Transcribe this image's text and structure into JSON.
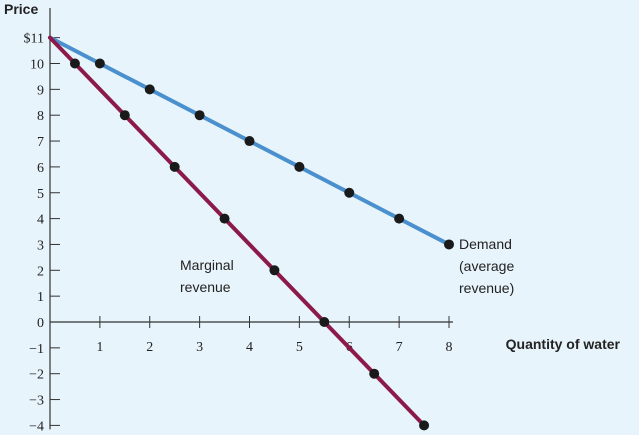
{
  "chart_data": {
    "type": "line",
    "ylabel": "Price",
    "xlabel": "Quantity of water",
    "xlim": [
      0,
      8
    ],
    "ylim": [
      -4,
      11
    ],
    "x_ticks": [
      1,
      2,
      3,
      4,
      5,
      6,
      7,
      8
    ],
    "y_ticks": [
      {
        "value": 11,
        "label": "$11"
      },
      {
        "value": 10,
        "label": "10"
      },
      {
        "value": 9,
        "label": "9"
      },
      {
        "value": 8,
        "label": "8"
      },
      {
        "value": 7,
        "label": "7"
      },
      {
        "value": 6,
        "label": "6"
      },
      {
        "value": 5,
        "label": "5"
      },
      {
        "value": 4,
        "label": "4"
      },
      {
        "value": 3,
        "label": "3"
      },
      {
        "value": 2,
        "label": "2"
      },
      {
        "value": 1,
        "label": "1"
      },
      {
        "value": 0,
        "label": "0"
      },
      {
        "value": -1,
        "label": "−1"
      },
      {
        "value": -2,
        "label": "−2"
      },
      {
        "value": -3,
        "label": "−3"
      },
      {
        "value": -4,
        "label": "−4"
      }
    ],
    "series": [
      {
        "key": "demand",
        "color": "#4a90cf",
        "line": [
          [
            0,
            11
          ],
          [
            8,
            3
          ]
        ],
        "points": [
          [
            1,
            10
          ],
          [
            2,
            9
          ],
          [
            3,
            8
          ],
          [
            4,
            7
          ],
          [
            5,
            6
          ],
          [
            6,
            5
          ],
          [
            7,
            4
          ],
          [
            8,
            3
          ]
        ]
      },
      {
        "key": "marginal",
        "color": "#8b1a4a",
        "line": [
          [
            0,
            11
          ],
          [
            7.5,
            -4
          ]
        ],
        "points": [
          [
            0.5,
            10
          ],
          [
            1.5,
            8
          ],
          [
            2.5,
            6
          ],
          [
            3.5,
            4
          ],
          [
            4.5,
            2
          ],
          [
            5.5,
            0
          ],
          [
            6.5,
            -2
          ],
          [
            7.5,
            -4
          ]
        ]
      }
    ],
    "annotations": {
      "demand": [
        "Demand",
        "(average",
        "revenue)"
      ],
      "marginal": [
        "Marginal",
        "revenue"
      ]
    },
    "point_color": "#1a1a1a",
    "axis_color": "#333333",
    "background": "#e8f4fb"
  }
}
